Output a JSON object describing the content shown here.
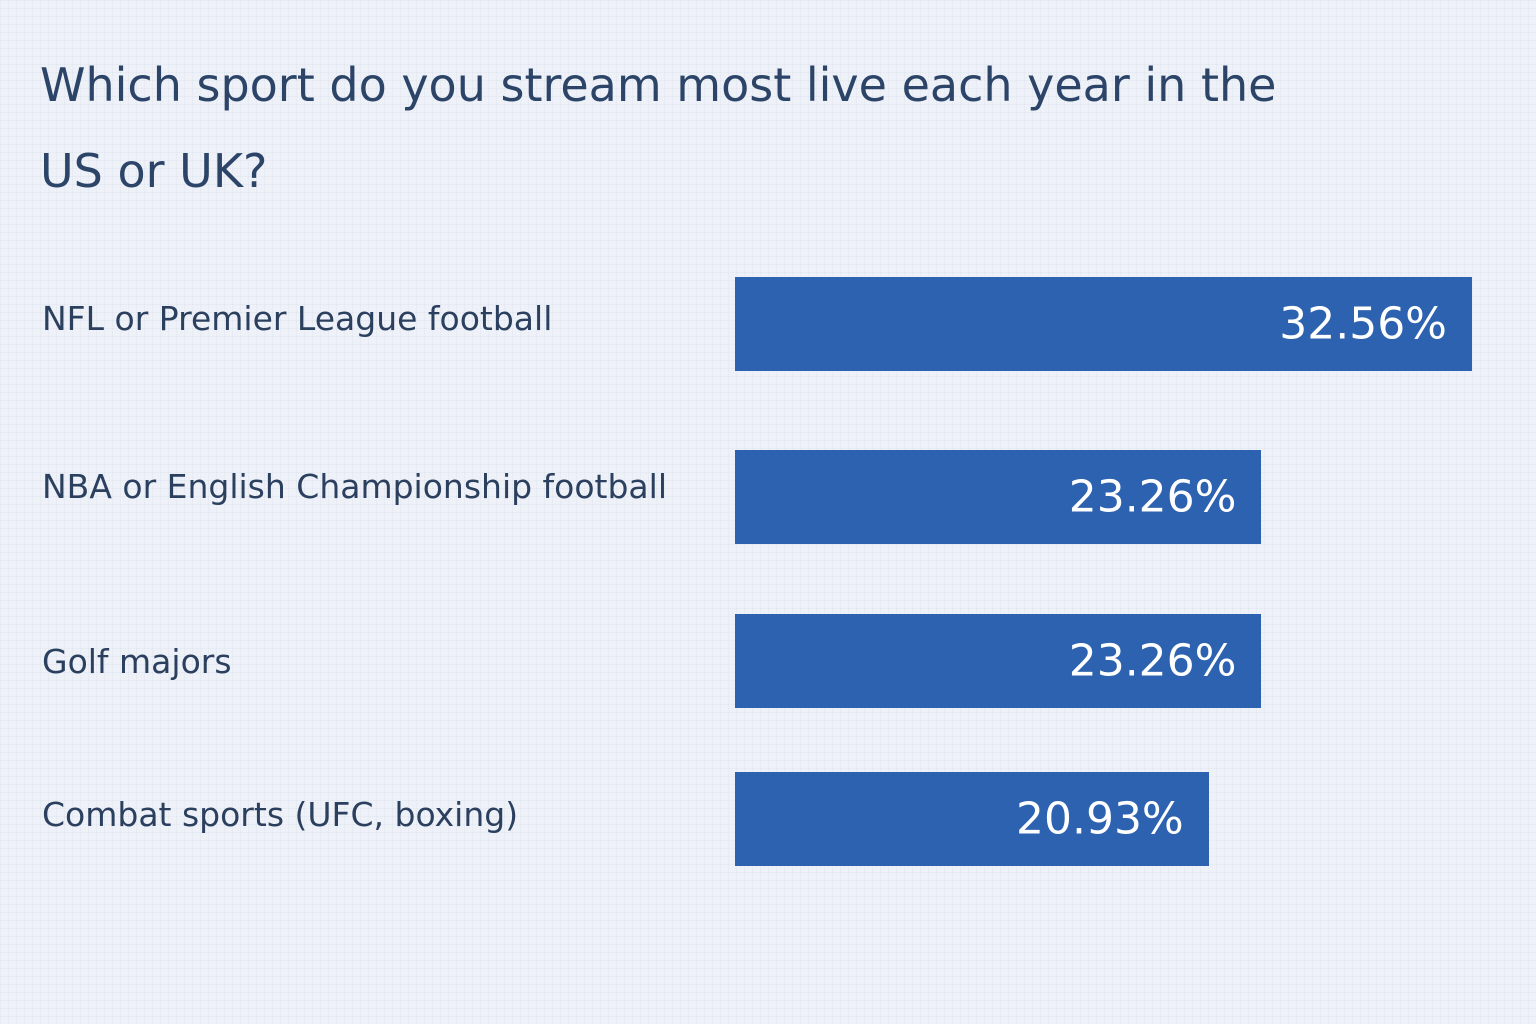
{
  "chart_data": {
    "type": "bar",
    "orientation": "horizontal",
    "title": "Which sport do you stream most live each year in the US or UK?",
    "categories": [
      "NFL or Premier League football",
      "NBA or English Championship football",
      "Golf majors",
      "Combat sports (UFC, boxing)"
    ],
    "values": [
      32.56,
      23.26,
      23.26,
      20.93
    ],
    "value_labels": [
      "32.56%",
      "23.26%",
      "23.26%",
      "20.93%"
    ],
    "color": "#2d62b0"
  }
}
